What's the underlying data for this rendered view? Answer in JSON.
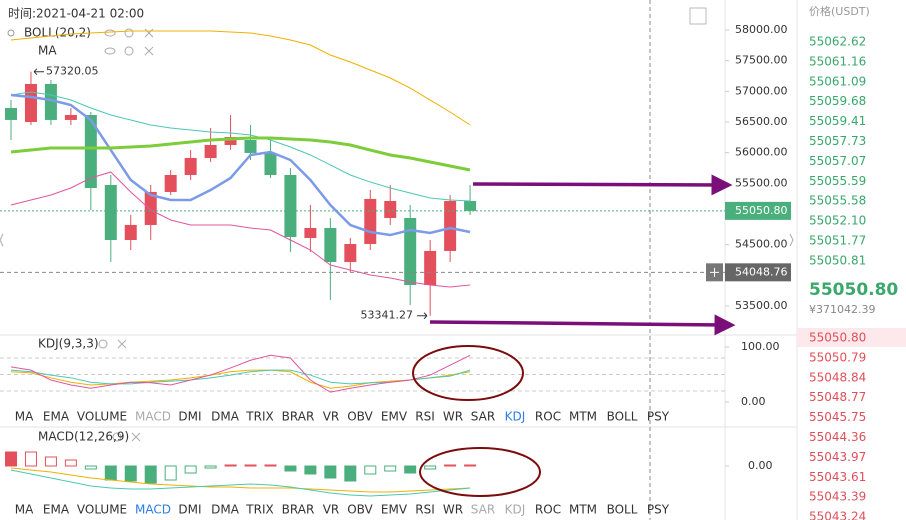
{
  "time_label": "时间:2021-04-21 02:00",
  "main": {
    "type": "candlestick",
    "indicator_labels": [
      "BOLL(20,2)",
      "MA"
    ],
    "up_color": "#e3505c",
    "down_color": "#4aaf7c",
    "ylim": [
      53027,
      58489
    ],
    "yticks": [
      {
        "value": 58000,
        "label": "58000.00"
      },
      {
        "value": 57500,
        "label": "57500.00"
      },
      {
        "value": 57000,
        "label": "57000.00"
      },
      {
        "value": 56500,
        "label": "56500.00"
      },
      {
        "value": 56000,
        "label": "56000.00"
      },
      {
        "value": 55500,
        "label": "55500.00"
      },
      {
        "value": 54500,
        "label": "54500.00"
      },
      {
        "value": 53500,
        "label": "53500.00"
      }
    ],
    "last_price": {
      "value": 55050.8,
      "label": "55050.80"
    },
    "crosshair_price": 54048.76,
    "max_label": 57320.05,
    "min_label": 53341.27,
    "candles": [
      {
        "open": 56728,
        "high": 56859,
        "low": 56206,
        "close": 56533
      },
      {
        "open": 56500,
        "high": 57320.05,
        "low": 56451,
        "close": 57120
      },
      {
        "open": 57120,
        "high": 57185,
        "low": 56451,
        "close": 56533
      },
      {
        "open": 56533,
        "high": 56728,
        "low": 56451,
        "close": 56614
      },
      {
        "open": 56614,
        "high": 56663,
        "low": 55065,
        "close": 55424
      },
      {
        "open": 55473,
        "high": 55636,
        "low": 54217,
        "close": 54576
      },
      {
        "open": 54576,
        "high": 54984,
        "low": 54413,
        "close": 54821
      },
      {
        "open": 54821,
        "high": 55473,
        "low": 54576,
        "close": 55359
      },
      {
        "open": 55359,
        "high": 55717,
        "low": 55310,
        "close": 55636
      },
      {
        "open": 55636,
        "high": 56043,
        "low": 55554,
        "close": 55913
      },
      {
        "open": 55913,
        "high": 56402,
        "low": 55848,
        "close": 56125
      },
      {
        "open": 56125,
        "high": 56614,
        "low": 56043,
        "close": 56255
      },
      {
        "open": 56206,
        "high": 56451,
        "low": 55880,
        "close": 55995
      },
      {
        "open": 55995,
        "high": 56206,
        "low": 55587,
        "close": 55636
      },
      {
        "open": 55636,
        "high": 55750,
        "low": 54380,
        "close": 54625
      },
      {
        "open": 54609,
        "high": 55147,
        "low": 54380,
        "close": 54772
      },
      {
        "open": 54772,
        "high": 54935,
        "low": 53598,
        "close": 54217
      },
      {
        "open": 54217,
        "high": 54609,
        "low": 54054,
        "close": 54511
      },
      {
        "open": 54511,
        "high": 55391,
        "low": 54413,
        "close": 55245
      },
      {
        "open": 54935,
        "high": 55473,
        "low": 54821,
        "close": 55212
      },
      {
        "open": 54935,
        "high": 55147,
        "low": 53516,
        "close": 53842
      },
      {
        "open": 53842,
        "high": 54576,
        "low": 53341.27,
        "close": 54397
      },
      {
        "open": 54397,
        "high": 55310,
        "low": 54217,
        "close": 55212
      },
      {
        "open": 55212,
        "high": 55473,
        "low": 54984,
        "close": 55050.8
      }
    ],
    "lines": [
      {
        "color": "#f0b000",
        "width": 1,
        "values": [
          57837,
          57869,
          57902,
          57935,
          57951,
          57967,
          57984,
          57984,
          57984,
          57984,
          57984,
          57967,
          57951,
          57902,
          57837,
          57755,
          57592,
          57478,
          57348,
          57217,
          57054,
          56858,
          56663,
          56451
        ]
      },
      {
        "color": "#4cc8b4",
        "width": 1,
        "values": [
          56940,
          56989,
          56940,
          56858,
          56728,
          56614,
          56532,
          56451,
          56402,
          56369,
          56337,
          56320,
          56288,
          56206,
          56092,
          55962,
          55799,
          55636,
          55521,
          55424,
          55342,
          55261,
          55228,
          55212
        ]
      },
      {
        "color": "#e0559e",
        "width": 1,
        "values": [
          55146,
          55228,
          55310,
          55424,
          55587,
          55685,
          55358,
          55065,
          54902,
          54820,
          54820,
          54820,
          54771,
          54739,
          54576,
          54413,
          54168,
          54087,
          54005,
          53956,
          53891,
          53842,
          53809,
          53842
        ]
      },
      {
        "color": "#7b9ae8",
        "width": 2.5,
        "values": [
          56940,
          56907,
          56858,
          56777,
          56532,
          56043,
          55554,
          55310,
          55228,
          55228,
          55391,
          55587,
          55962,
          56011,
          55880,
          55554,
          55146,
          54820,
          54706,
          54657,
          54739,
          54690,
          54771,
          54706
        ]
      },
      {
        "color": "#7dcc3a",
        "width": 3,
        "values": [
          56011,
          56043,
          56076,
          56076,
          56076,
          56076,
          56092,
          56108,
          56141,
          56174,
          56206,
          56223,
          56239,
          56239,
          56223,
          56206,
          56174,
          56125,
          56043,
          55962,
          55913,
          55848,
          55783,
          55717
        ]
      }
    ]
  },
  "kdj": {
    "title": "KDJ(9,3,3)",
    "ylim": [
      -14.5,
      116.4
    ],
    "yticks": [
      {
        "value": 100,
        "label": "100.00"
      },
      {
        "value": 0,
        "label": "0.00"
      }
    ],
    "guides": [
      80,
      50,
      20
    ],
    "lines": [
      {
        "color": "#f0b000",
        "values": [
          55,
          53,
          44,
          36,
          31,
          33,
          36,
          38,
          40,
          44,
          49,
          55,
          58,
          58,
          55,
          36,
          25,
          29,
          35,
          38,
          40,
          44,
          49,
          55
        ]
      },
      {
        "color": "#4cc8b4",
        "values": [
          58,
          55,
          49,
          44,
          36,
          33,
          33,
          36,
          38,
          40,
          44,
          49,
          55,
          58,
          58,
          49,
          36,
          33,
          35,
          36,
          40,
          44,
          47,
          58
        ]
      },
      {
        "color": "#e0559e",
        "values": [
          64,
          58,
          40,
          31,
          25,
          31,
          36,
          35,
          31,
          40,
          49,
          62,
          76,
          85,
          80,
          40,
          18,
          25,
          31,
          36,
          40,
          49,
          67,
          85
        ]
      }
    ]
  },
  "macd": {
    "title": "MACD(12,26,9)",
    "ylim": [
      -340,
      360
    ],
    "yticks": [
      {
        "value": 0,
        "label": "0.00"
      }
    ],
    "up_color": "#e3505c",
    "down_color": "#4aaf7c",
    "hist": [
      140,
      140,
      90,
      60,
      -30,
      -140,
      -150,
      -170,
      -140,
      -70,
      -20,
      10,
      10,
      10,
      -50,
      -80,
      -120,
      -150,
      -80,
      -50,
      -70,
      -30,
      10,
      10
    ],
    "lines": [
      {
        "color": "#f0b000",
        "values": [
          -20,
          -40,
          -60,
          -90,
          -120,
          -140,
          -160,
          -180,
          -190,
          -200,
          -210,
          -210,
          -220,
          -220,
          -220,
          -230,
          -240,
          -250,
          -260,
          -260,
          -250,
          -240,
          -230,
          -220
        ]
      },
      {
        "color": "#4cc8b4",
        "values": [
          -40,
          -80,
          -120,
          -160,
          -200,
          -220,
          -230,
          -230,
          -220,
          -210,
          -200,
          -190,
          -180,
          -190,
          -210,
          -240,
          -270,
          -290,
          -300,
          -290,
          -280,
          -260,
          -240,
          -220
        ]
      }
    ]
  },
  "tabs": [
    "MA",
    "EMA",
    "VOLUME",
    "MACD",
    "DMI",
    "DMA",
    "TRIX",
    "BRAR",
    "VR",
    "OBV",
    "EMV",
    "RSI",
    "WR",
    "SAR",
    "KDJ",
    "ROC",
    "MTM",
    "BOLL",
    "PSY"
  ],
  "tab_rows": [
    {
      "active": 14,
      "muted": [
        3
      ]
    },
    {
      "active": 3,
      "muted": [
        13,
        14
      ]
    }
  ],
  "order_book": {
    "header": "价格(USDT)",
    "asks": [
      "55062.62",
      "55061.16",
      "55061.09",
      "55059.68",
      "55059.41",
      "55057.73",
      "55057.07",
      "55055.59",
      "55055.58",
      "55052.10",
      "55051.77",
      "55050.81"
    ],
    "last": "55050.80",
    "cny": "¥371042.39",
    "bids": [
      "55050.80",
      "55050.79",
      "55048.84",
      "55048.77",
      "55045.75",
      "55044.36",
      "55043.97",
      "55043.61",
      "55043.39",
      "55043.24"
    ]
  }
}
